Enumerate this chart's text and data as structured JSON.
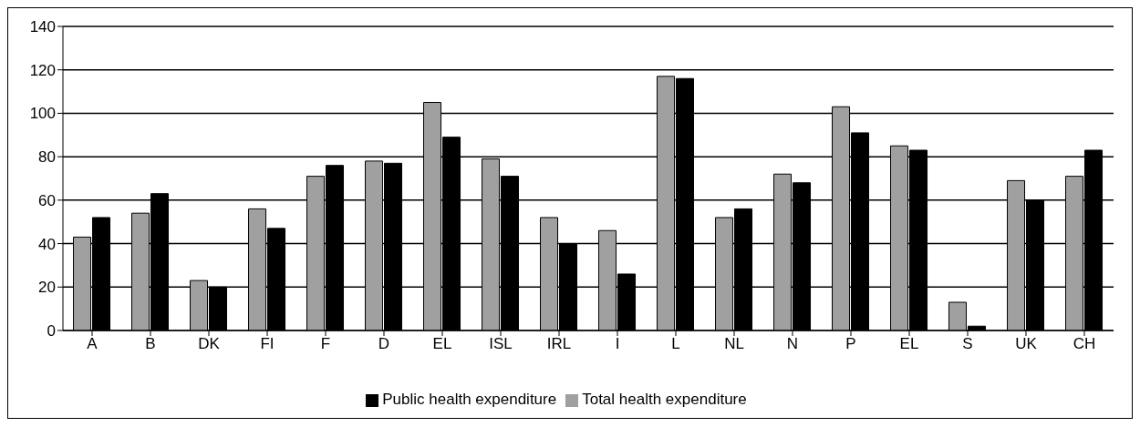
{
  "chart_data": {
    "type": "bar",
    "categories": [
      "A",
      "B",
      "DK",
      "FI",
      "F",
      "D",
      "EL",
      "ISL",
      "IRL",
      "I",
      "L",
      "NL",
      "N",
      "P",
      "EL",
      "S",
      "UK",
      "CH"
    ],
    "series": [
      {
        "name": "Total health expenditure",
        "color": "#a0a0a0",
        "values": [
          43,
          54,
          23,
          56,
          71,
          78,
          105,
          79,
          52,
          46,
          117,
          52,
          72,
          103,
          85,
          13,
          69,
          71
        ]
      },
      {
        "name": "Public health expenditure",
        "color": "#000000",
        "values": [
          52,
          63,
          20,
          47,
          76,
          77,
          89,
          71,
          40,
          26,
          116,
          56,
          68,
          91,
          83,
          2,
          60,
          83
        ]
      }
    ],
    "ylim": [
      0,
      140
    ],
    "yticks": [
      0,
      20,
      40,
      60,
      80,
      100,
      120,
      140
    ],
    "grid": "y",
    "legend": "bottom"
  }
}
